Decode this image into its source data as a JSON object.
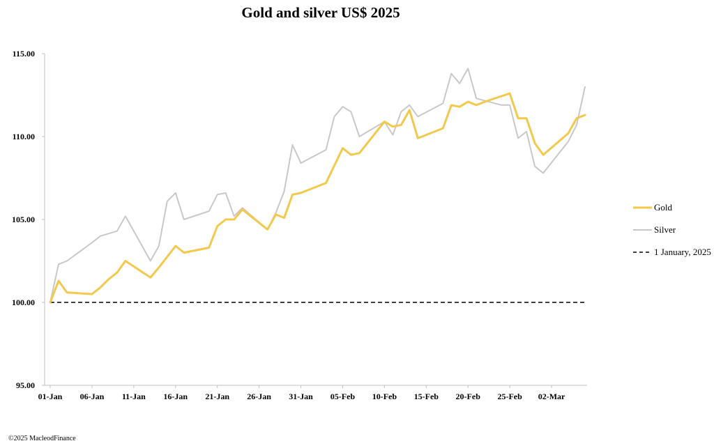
{
  "chart_data": {
    "type": "line",
    "title": "Gold and silver  US$ 2025",
    "xlabel": "",
    "ylabel": "",
    "ylim": [
      95,
      115
    ],
    "y_ticks": [
      "115.00",
      "110.00",
      "105.00",
      "100.00",
      "95.00"
    ],
    "x_ticks": [
      "01-Jan",
      "06-Jan",
      "11-Jan",
      "16-Jan",
      "21-Jan",
      "26-Jan",
      "31-Jan",
      "05-Feb",
      "10-Feb",
      "15-Feb",
      "20-Feb",
      "25-Feb",
      "02-Mar"
    ],
    "x_day_of_year_for_ticks": [
      1,
      6,
      11,
      16,
      21,
      26,
      31,
      36,
      41,
      46,
      51,
      56,
      61
    ],
    "xlim": [
      1,
      65
    ],
    "legend_position": "right",
    "grid": false,
    "series": [
      {
        "name": "Gold",
        "color": "#F2C94C",
        "points": [
          [
            1,
            100.0
          ],
          [
            2,
            101.3
          ],
          [
            3,
            100.6
          ],
          [
            6,
            100.5
          ],
          [
            7,
            100.9
          ],
          [
            8,
            101.4
          ],
          [
            9,
            101.8
          ],
          [
            10,
            102.5
          ],
          [
            13,
            101.5
          ],
          [
            14,
            102.1
          ],
          [
            16,
            103.4
          ],
          [
            17,
            103.0
          ],
          [
            20,
            103.3
          ],
          [
            21,
            104.6
          ],
          [
            22,
            105.0
          ],
          [
            23,
            105.0
          ],
          [
            24,
            105.6
          ],
          [
            27,
            104.4
          ],
          [
            28,
            105.3
          ],
          [
            29,
            105.1
          ],
          [
            30,
            106.5
          ],
          [
            31,
            106.6
          ],
          [
            34,
            107.2
          ],
          [
            36,
            109.3
          ],
          [
            37,
            108.9
          ],
          [
            38,
            109.0
          ],
          [
            41,
            110.9
          ],
          [
            42,
            110.6
          ],
          [
            43,
            110.7
          ],
          [
            44,
            111.6
          ],
          [
            45,
            109.9
          ],
          [
            48,
            110.5
          ],
          [
            49,
            111.9
          ],
          [
            50,
            111.8
          ],
          [
            51,
            112.1
          ],
          [
            52,
            111.9
          ],
          [
            53,
            112.1
          ],
          [
            56,
            112.6
          ],
          [
            57,
            111.1
          ],
          [
            58,
            111.1
          ],
          [
            59,
            109.6
          ],
          [
            60,
            108.9
          ],
          [
            63,
            110.2
          ],
          [
            64,
            111.1
          ],
          [
            65,
            111.3
          ]
        ]
      },
      {
        "name": "Silver",
        "color": "#C8C8C8",
        "points": [
          [
            1,
            100.0
          ],
          [
            2,
            102.3
          ],
          [
            3,
            102.5
          ],
          [
            6,
            103.6
          ],
          [
            7,
            104.0
          ],
          [
            9,
            104.3
          ],
          [
            10,
            105.2
          ],
          [
            13,
            102.5
          ],
          [
            14,
            103.4
          ],
          [
            15,
            106.1
          ],
          [
            16,
            106.6
          ],
          [
            17,
            105.0
          ],
          [
            20,
            105.5
          ],
          [
            21,
            106.5
          ],
          [
            22,
            106.6
          ],
          [
            23,
            105.2
          ],
          [
            24,
            105.7
          ],
          [
            27,
            104.4
          ],
          [
            28,
            105.4
          ],
          [
            29,
            106.7
          ],
          [
            30,
            109.5
          ],
          [
            31,
            108.4
          ],
          [
            34,
            109.2
          ],
          [
            35,
            111.2
          ],
          [
            36,
            111.8
          ],
          [
            37,
            111.5
          ],
          [
            38,
            110.0
          ],
          [
            41,
            110.9
          ],
          [
            42,
            110.1
          ],
          [
            43,
            111.5
          ],
          [
            44,
            111.9
          ],
          [
            45,
            111.2
          ],
          [
            48,
            112.0
          ],
          [
            49,
            113.8
          ],
          [
            50,
            113.2
          ],
          [
            51,
            114.1
          ],
          [
            52,
            112.3
          ],
          [
            55,
            111.9
          ],
          [
            56,
            111.9
          ],
          [
            57,
            109.9
          ],
          [
            58,
            110.3
          ],
          [
            59,
            108.2
          ],
          [
            60,
            107.8
          ],
          [
            63,
            109.7
          ],
          [
            64,
            110.7
          ],
          [
            65,
            113.0
          ]
        ]
      },
      {
        "name": "1 January, 2025",
        "color": "#000000",
        "style": "dashed",
        "points": [
          [
            1,
            100.0
          ],
          [
            65,
            100.0
          ]
        ]
      }
    ]
  },
  "copyright": "©2025 MacleodFinance"
}
